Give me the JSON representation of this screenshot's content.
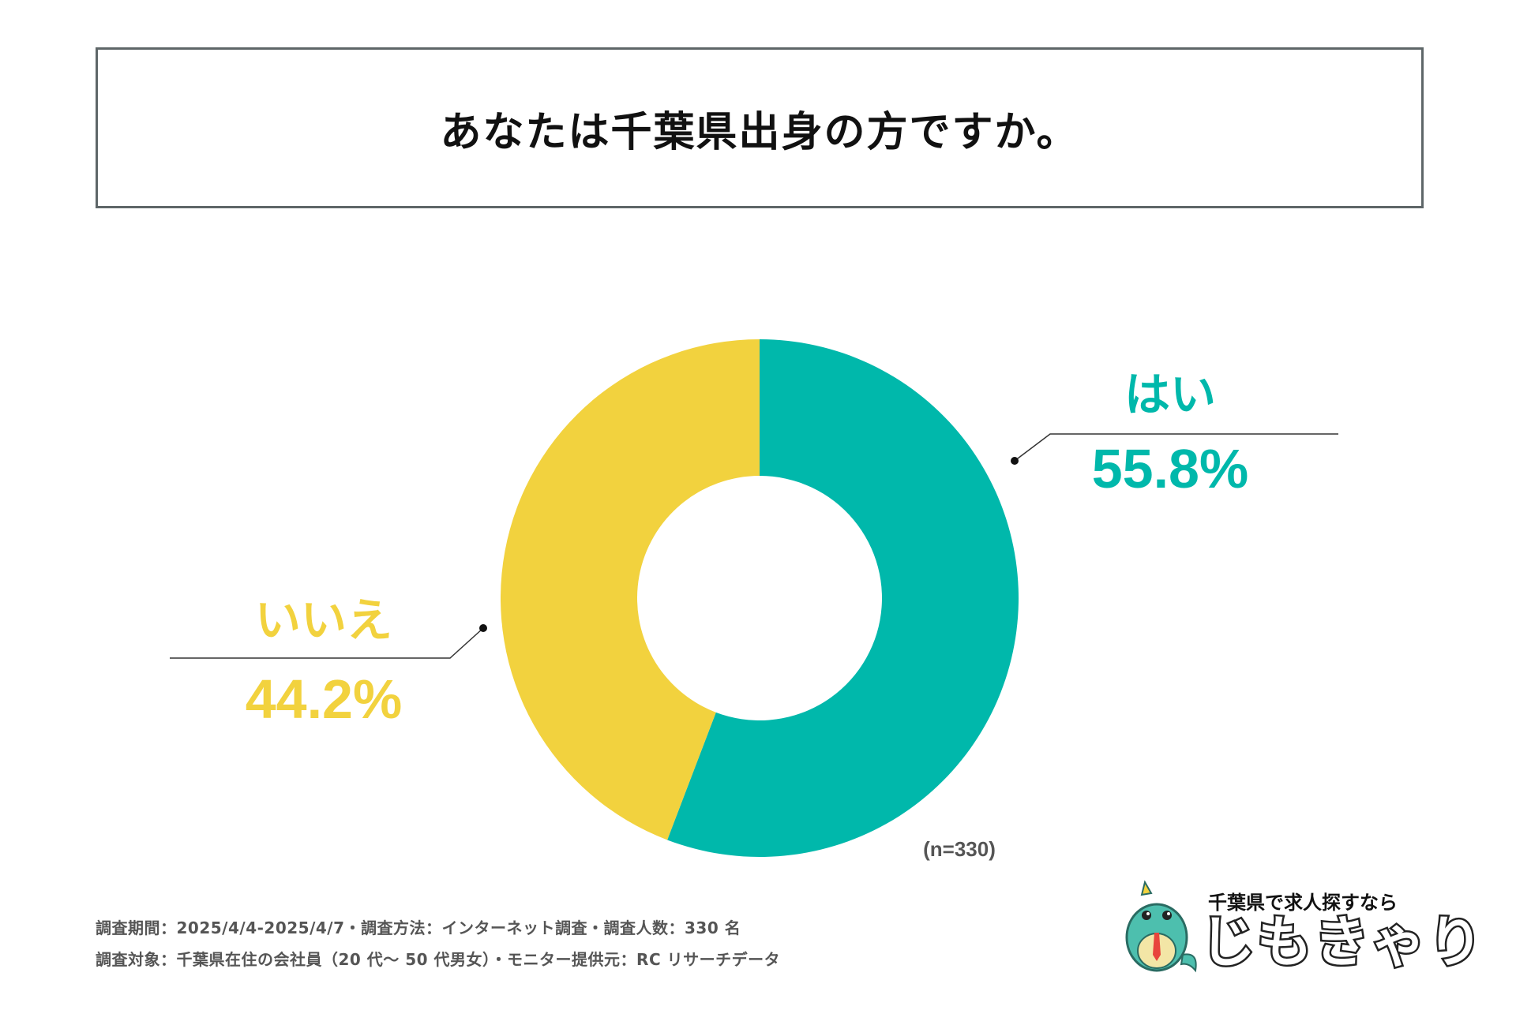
{
  "title": "あなたは千葉県出身の方ですか。",
  "chart_data": {
    "type": "pie",
    "variant": "donut",
    "title": "あなたは千葉県出身の方ですか。",
    "categories": [
      "はい",
      "いいえ"
    ],
    "values": [
      55.8,
      44.2
    ],
    "value_labels": [
      "55.8%",
      "44.2%"
    ],
    "colors": [
      "#00b8ab",
      "#f2d23e"
    ],
    "sample_label": "(n=330)"
  },
  "footer": {
    "line1": "調査期間：2025/4/4-2025/4/7・調査方法：インターネット調査・調査人数：330 名",
    "line2": "調査対象：千葉県在住の会社員（20 代～ 50 代男女）・モニター提供元：RC リサーチデータ"
  },
  "logo": {
    "tagline": "千葉県で求人探すなら",
    "name": "じもきゃり"
  }
}
